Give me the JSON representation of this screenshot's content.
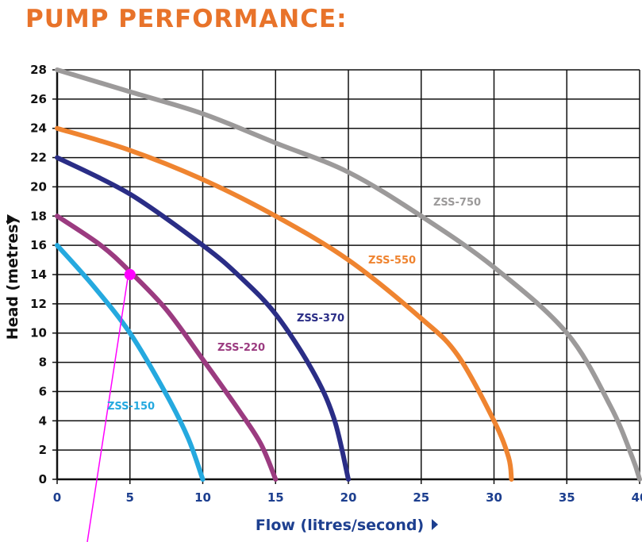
{
  "page_title": "PUMP PERFORMANCE:",
  "chart_data": {
    "type": "line",
    "xlabel": "Flow (litres/second)",
    "ylabel": "Head (metres)",
    "xlim": [
      0,
      40
    ],
    "ylim": [
      0,
      28
    ],
    "x_ticks": [
      0,
      5,
      10,
      15,
      20,
      25,
      30,
      35,
      40
    ],
    "y_ticks": [
      0,
      2,
      4,
      6,
      8,
      10,
      12,
      14,
      16,
      18,
      20,
      22,
      24,
      26,
      28
    ],
    "grid": true,
    "series": [
      {
        "name": "ZSS-150",
        "color": "#25a9df",
        "points": [
          [
            0,
            16
          ],
          [
            2.5,
            13.2
          ],
          [
            5,
            10
          ],
          [
            7.5,
            5.8
          ],
          [
            9,
            2.8
          ],
          [
            10,
            0
          ]
        ]
      },
      {
        "name": "ZSS-220",
        "color": "#9b3b80",
        "points": [
          [
            0,
            18
          ],
          [
            3,
            16
          ],
          [
            5,
            14.2
          ],
          [
            7.5,
            11.6
          ],
          [
            10,
            8.2
          ],
          [
            12.5,
            4.7
          ],
          [
            14,
            2.4
          ],
          [
            15,
            0
          ]
        ]
      },
      {
        "name": "ZSS-370",
        "color": "#2a2d86",
        "points": [
          [
            0,
            22
          ],
          [
            5,
            19.5
          ],
          [
            10,
            16
          ],
          [
            12.5,
            13.9
          ],
          [
            15,
            11.3
          ],
          [
            17.5,
            7.5
          ],
          [
            19,
            4.2
          ],
          [
            20,
            0
          ]
        ]
      },
      {
        "name": "ZSS-550",
        "color": "#ef8430",
        "points": [
          [
            0,
            24
          ],
          [
            5,
            22.5
          ],
          [
            10,
            20.5
          ],
          [
            15,
            18
          ],
          [
            20,
            15
          ],
          [
            25,
            11
          ],
          [
            27.5,
            8.5
          ],
          [
            30,
            4
          ],
          [
            31,
            1.5
          ],
          [
            31.2,
            0
          ]
        ]
      },
      {
        "name": "ZSS-750",
        "color": "#9c9a9a",
        "points": [
          [
            0,
            28
          ],
          [
            5,
            26.5
          ],
          [
            10,
            25
          ],
          [
            15,
            23
          ],
          [
            20,
            21
          ],
          [
            25,
            18
          ],
          [
            30,
            14.5
          ],
          [
            35,
            10
          ],
          [
            38,
            5
          ],
          [
            39.5,
            1.5
          ],
          [
            40,
            0
          ]
        ]
      }
    ],
    "annotation_point": {
      "x": 5,
      "y": 14,
      "color": "#ff00ff"
    }
  }
}
